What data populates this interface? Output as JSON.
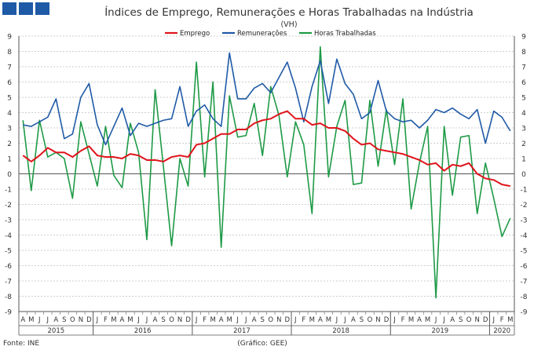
{
  "header": {
    "title": "Índices de Emprego, Remunerações e Horas Trabalhadas na Indústria",
    "unit": "(VH)",
    "brand_color": "#1f5aa6"
  },
  "footer": {
    "source": "Fonte: INE",
    "credit": "(Gráfico: GEE)"
  },
  "chart_data": {
    "type": "line",
    "title": "Índices de Emprego, Remunerações e Horas Trabalhadas na Indústria",
    "ylabel": "(VH)",
    "ylim": [
      -9,
      9
    ],
    "yticks": [
      "9",
      "8",
      "7",
      "6",
      "5",
      "4",
      "3",
      "2",
      "1",
      "0",
      "-1",
      "-2",
      "-3",
      "-4",
      "-5",
      "-6",
      "-7",
      "-8",
      "-9"
    ],
    "grid": true,
    "legend_position": "top-center",
    "x": [
      "A",
      "M",
      "J",
      "J",
      "A",
      "S",
      "O",
      "N",
      "D",
      "J",
      "F",
      "M",
      "A",
      "M",
      "J",
      "J",
      "A",
      "S",
      "O",
      "N",
      "D",
      "J",
      "F",
      "M",
      "A",
      "M",
      "J",
      "J",
      "A",
      "S",
      "O",
      "N",
      "D",
      "J",
      "F",
      "M",
      "A",
      "M",
      "J",
      "J",
      "A",
      "S",
      "O",
      "N",
      "D",
      "J",
      "F",
      "M",
      "A",
      "M",
      "J",
      "J",
      "A",
      "S",
      "O",
      "N",
      "D",
      "J",
      "F",
      "M"
    ],
    "years": [
      {
        "label": "2015",
        "start": 0,
        "end": 8
      },
      {
        "label": "2016",
        "start": 9,
        "end": 20
      },
      {
        "label": "2017",
        "start": 21,
        "end": 32
      },
      {
        "label": "2018",
        "start": 33,
        "end": 44
      },
      {
        "label": "2019",
        "start": 45,
        "end": 56
      },
      {
        "label": "2020",
        "start": 57,
        "end": 59
      }
    ],
    "series": [
      {
        "name": "Emprego",
        "color": "#e0141c",
        "values": [
          1.2,
          0.8,
          1.2,
          1.7,
          1.4,
          1.4,
          1.1,
          1.5,
          1.8,
          1.2,
          1.1,
          1.1,
          1.0,
          1.3,
          1.2,
          0.9,
          0.9,
          0.8,
          1.1,
          1.2,
          1.1,
          1.9,
          2.0,
          2.3,
          2.6,
          2.6,
          2.9,
          2.9,
          3.3,
          3.5,
          3.6,
          3.9,
          4.1,
          3.6,
          3.6,
          3.2,
          3.3,
          3.0,
          3.0,
          2.8,
          2.3,
          1.9,
          2.0,
          1.6,
          1.5,
          1.4,
          1.3,
          1.1,
          0.9,
          0.6,
          0.7,
          0.2,
          0.6,
          0.5,
          0.7,
          0.0,
          -0.3,
          -0.4,
          -0.7,
          -0.8
        ]
      },
      {
        "name": "Remunerações",
        "color": "#1f5aa6",
        "values": [
          3.2,
          3.1,
          3.4,
          3.7,
          4.9,
          2.3,
          2.6,
          5.0,
          5.9,
          3.2,
          1.9,
          3.1,
          4.3,
          2.5,
          3.3,
          3.1,
          3.3,
          3.5,
          3.6,
          5.7,
          3.1,
          4.1,
          4.5,
          3.6,
          3.1,
          7.9,
          4.9,
          4.9,
          5.6,
          5.9,
          5.3,
          6.3,
          7.3,
          5.6,
          3.4,
          5.7,
          7.4,
          4.6,
          7.5,
          5.9,
          5.2,
          3.6,
          4.0,
          6.1,
          4.1,
          3.6,
          3.4,
          3.5,
          3.0,
          3.5,
          4.2,
          4.0,
          4.3,
          3.9,
          3.6,
          4.2,
          2.0,
          4.1,
          3.7,
          2.8
        ]
      },
      {
        "name": "Horas Trabalhadas",
        "color": "#1e9a46",
        "values": [
          3.5,
          -1.1,
          3.5,
          1.1,
          1.4,
          1.0,
          -1.6,
          3.4,
          1.3,
          -0.8,
          3.1,
          -0.1,
          -0.9,
          3.3,
          1.4,
          -4.3,
          5.5,
          0.5,
          -4.7,
          1.0,
          -0.8,
          7.3,
          -0.2,
          6.0,
          -4.8,
          5.1,
          2.4,
          2.5,
          4.6,
          1.2,
          5.7,
          3.8,
          -0.2,
          3.4,
          1.9,
          -2.6,
          8.3,
          -0.2,
          3.1,
          4.8,
          -0.7,
          -0.6,
          4.8,
          0.5,
          4.2,
          0.6,
          4.9,
          -2.3,
          0.7,
          3.1,
          -8.1,
          3.1,
          -1.4,
          2.4,
          2.5,
          -2.6,
          0.7,
          -1.6,
          -4.1,
          -2.9
        ]
      }
    ]
  }
}
